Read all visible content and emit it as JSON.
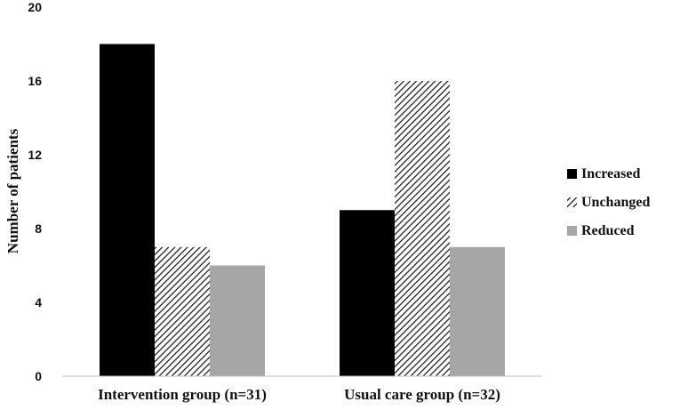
{
  "chart_data": {
    "type": "bar",
    "title": "",
    "xlabel": "",
    "ylabel": "Number of patients",
    "ylim": [
      0,
      20
    ],
    "yticks": [
      0,
      4,
      8,
      12,
      16,
      20
    ],
    "categories": [
      "Intervention group (n=31)",
      "Usual care group (n=32)"
    ],
    "series": [
      {
        "name": "Increased",
        "values": [
          18,
          9
        ],
        "color": "#000000",
        "pattern": "solid"
      },
      {
        "name": "Unchanged",
        "values": [
          7,
          16
        ],
        "color": "#222222",
        "pattern": "diagonal-hatch"
      },
      {
        "name": "Reduced",
        "values": [
          6,
          7
        ],
        "color": "#a6a6a6",
        "pattern": "solid"
      }
    ],
    "grid": false,
    "legend_position": "right"
  }
}
